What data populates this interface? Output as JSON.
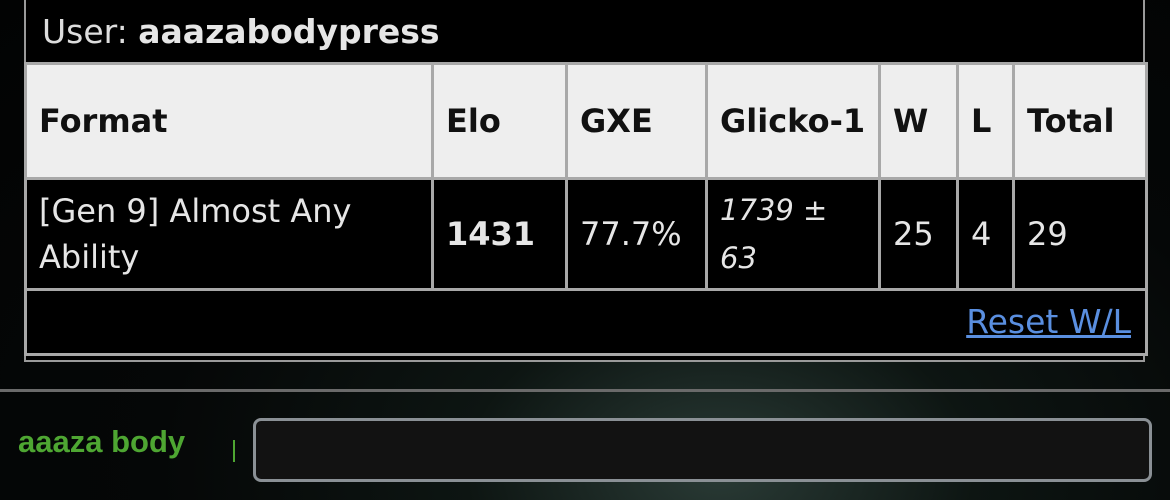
{
  "user": {
    "label": "User:",
    "name": "aaazabodypress"
  },
  "table": {
    "headers": [
      "Format",
      "Elo",
      "GXE",
      "Glicko-1",
      "W",
      "L",
      "Total"
    ],
    "rows": [
      {
        "format": "[Gen 9] Almost Any Ability",
        "elo": "1431",
        "gxe": "77.7%",
        "glicko": "1739 ± 63",
        "w": "25",
        "l": "4",
        "total": "29"
      }
    ],
    "reset_link": "Reset W/L"
  },
  "chat": {
    "username": "aaaza body",
    "input_value": "",
    "input_placeholder": ""
  },
  "colors": {
    "link": "#5a8fe0",
    "username": "#4ea632",
    "header_bg": "#eeeeee"
  }
}
